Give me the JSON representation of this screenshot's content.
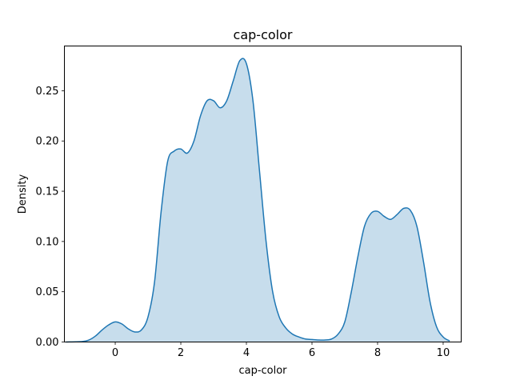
{
  "chart_data": {
    "type": "area",
    "title": "cap-color",
    "xlabel": "cap-color",
    "ylabel": "Density",
    "xlim": [
      -1.55,
      10.55
    ],
    "ylim": [
      0,
      0.2945
    ],
    "xticks": [
      0,
      2,
      4,
      6,
      8,
      10
    ],
    "yticks": [
      0.0,
      0.05,
      0.1,
      0.15,
      0.2,
      0.25
    ],
    "xtick_labels": [
      "0",
      "2",
      "4",
      "6",
      "8",
      "10"
    ],
    "ytick_labels": [
      "0.00",
      "0.05",
      "0.10",
      "0.15",
      "0.20",
      "0.25"
    ],
    "grid": false,
    "series": [
      {
        "color": "#1f77b4",
        "fill_color": "#1f77b4",
        "fill_opacity": 0.25,
        "x": [
          -1.5,
          -1.0,
          -0.8,
          -0.6,
          -0.4,
          -0.2,
          0.0,
          0.2,
          0.4,
          0.6,
          0.8,
          1.0,
          1.2,
          1.4,
          1.6,
          1.8,
          2.0,
          2.2,
          2.4,
          2.6,
          2.8,
          3.0,
          3.2,
          3.4,
          3.6,
          3.8,
          4.0,
          4.2,
          4.4,
          4.6,
          4.8,
          5.0,
          5.2,
          5.4,
          5.6,
          5.8,
          6.0,
          6.2,
          6.4,
          6.6,
          6.8,
          7.0,
          7.2,
          7.4,
          7.6,
          7.8,
          8.0,
          8.2,
          8.4,
          8.6,
          8.8,
          9.0,
          9.2,
          9.4,
          9.6,
          9.8,
          10.0,
          10.2
        ],
        "y": [
          0.0,
          0.0005,
          0.002,
          0.006,
          0.012,
          0.017,
          0.02,
          0.018,
          0.013,
          0.01,
          0.012,
          0.025,
          0.06,
          0.13,
          0.18,
          0.19,
          0.192,
          0.188,
          0.2,
          0.225,
          0.24,
          0.24,
          0.233,
          0.24,
          0.26,
          0.28,
          0.277,
          0.24,
          0.17,
          0.1,
          0.05,
          0.025,
          0.014,
          0.008,
          0.005,
          0.003,
          0.0025,
          0.002,
          0.002,
          0.003,
          0.008,
          0.02,
          0.05,
          0.085,
          0.115,
          0.128,
          0.13,
          0.125,
          0.122,
          0.127,
          0.133,
          0.131,
          0.115,
          0.08,
          0.04,
          0.015,
          0.005,
          0.001
        ]
      }
    ]
  }
}
